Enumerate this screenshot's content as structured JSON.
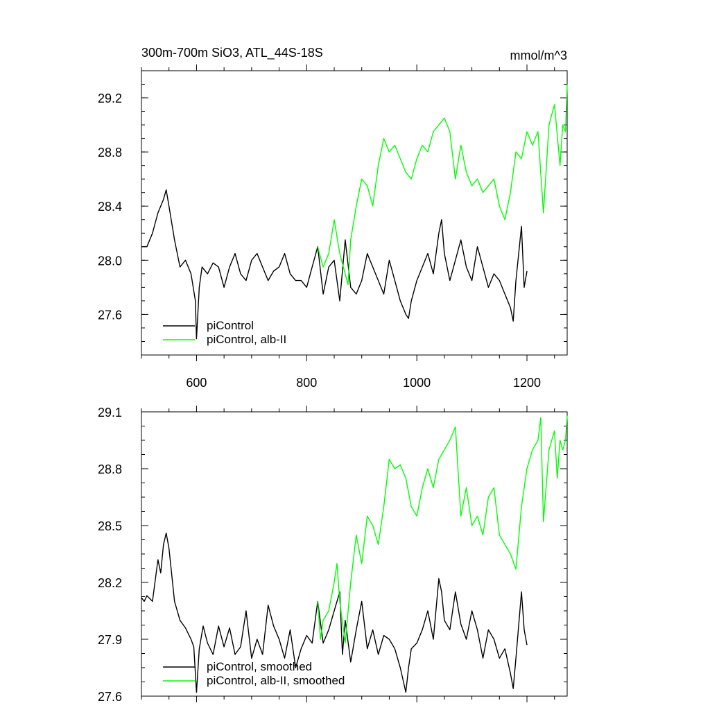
{
  "chart_data": [
    {
      "type": "line",
      "title_left": "300m-700m SiO3, ATL_44S-18S",
      "title_right": "mmol/m^3",
      "xlim": [
        500,
        1273
      ],
      "ylim": [
        27.3,
        29.4
      ],
      "x_ticks": [
        600,
        800,
        1000,
        1200
      ],
      "x_tick_labels": [
        "600",
        "800",
        "1000",
        "1200"
      ],
      "y_ticks": [
        27.6,
        28.0,
        28.4,
        28.8,
        29.2
      ],
      "y_tick_labels": [
        "27.6",
        "28.0",
        "28.4",
        "28.8",
        "29.2"
      ],
      "legend": [
        "piControl",
        "piControl, alb-II"
      ],
      "legend_position": "bottom-left",
      "series": [
        {
          "name": "piControl",
          "color": "#000000",
          "x": [
            500,
            510,
            520,
            530,
            540,
            545,
            550,
            560,
            570,
            580,
            590,
            598,
            600,
            605,
            610,
            620,
            630,
            640,
            650,
            660,
            670,
            680,
            690,
            700,
            710,
            720,
            730,
            740,
            750,
            760,
            770,
            780,
            790,
            800,
            810,
            820,
            830,
            840,
            850,
            860,
            870,
            880,
            890,
            900,
            910,
            920,
            930,
            940,
            950,
            960,
            970,
            980,
            985,
            990,
            1000,
            1010,
            1020,
            1030,
            1040,
            1045,
            1050,
            1060,
            1070,
            1080,
            1090,
            1100,
            1110,
            1120,
            1130,
            1140,
            1150,
            1160,
            1170,
            1175,
            1180,
            1190,
            1195,
            1200
          ],
          "values": [
            28.1,
            28.1,
            28.2,
            28.35,
            28.45,
            28.52,
            28.4,
            28.15,
            27.95,
            28.0,
            27.9,
            27.7,
            27.42,
            27.8,
            27.95,
            27.9,
            27.98,
            27.95,
            27.8,
            27.95,
            28.05,
            27.9,
            27.85,
            28.0,
            28.05,
            27.95,
            27.85,
            27.92,
            27.95,
            28.05,
            27.9,
            27.85,
            27.85,
            27.8,
            27.95,
            28.1,
            27.75,
            27.95,
            28.0,
            27.7,
            28.15,
            27.8,
            27.75,
            27.85,
            28.05,
            27.95,
            27.85,
            27.75,
            28.0,
            27.85,
            27.7,
            27.6,
            27.57,
            27.7,
            27.85,
            27.95,
            28.05,
            27.9,
            28.2,
            28.3,
            28.05,
            27.85,
            28.0,
            28.15,
            27.95,
            27.85,
            28.1,
            27.95,
            27.8,
            27.9,
            27.85,
            27.75,
            27.65,
            27.55,
            27.85,
            28.25,
            27.8,
            27.92
          ]
        },
        {
          "name": "piControl, alb-II",
          "color": "#00ff00",
          "x": [
            820,
            830,
            840,
            850,
            860,
            870,
            875,
            880,
            890,
            900,
            910,
            920,
            930,
            940,
            950,
            960,
            970,
            980,
            990,
            1000,
            1010,
            1020,
            1030,
            1040,
            1050,
            1060,
            1070,
            1080,
            1090,
            1100,
            1110,
            1120,
            1130,
            1140,
            1150,
            1160,
            1170,
            1180,
            1190,
            1200,
            1210,
            1220,
            1230,
            1240,
            1250,
            1260,
            1265,
            1270,
            1273
          ],
          "values": [
            28.1,
            27.95,
            28.05,
            28.3,
            28.05,
            27.9,
            27.82,
            28.15,
            28.4,
            28.6,
            28.55,
            28.4,
            28.7,
            28.9,
            28.8,
            28.85,
            28.75,
            28.65,
            28.6,
            28.75,
            28.85,
            28.8,
            28.95,
            29.0,
            29.05,
            28.95,
            28.6,
            28.85,
            28.65,
            28.55,
            28.6,
            28.5,
            28.55,
            28.6,
            28.4,
            28.3,
            28.5,
            28.8,
            28.75,
            28.95,
            28.85,
            28.95,
            28.35,
            29.0,
            29.15,
            28.7,
            29.0,
            28.95,
            29.3
          ]
        }
      ]
    },
    {
      "type": "line",
      "xlim": [
        500,
        1273
      ],
      "ylim": [
        27.6,
        29.1
      ],
      "x_ticks": [
        600,
        800,
        1000,
        1200
      ],
      "y_ticks": [
        27.6,
        27.9,
        28.2,
        28.5,
        28.8,
        29.1
      ],
      "y_tick_labels": [
        "27.6",
        "27.9",
        "28.2",
        "28.5",
        "28.8",
        "29.1"
      ],
      "legend": [
        "piControl, smoothed",
        "piControl, alb-II, smoothed"
      ],
      "legend_position": "bottom-left",
      "series": [
        {
          "name": "piControl, smoothed",
          "color": "#000000",
          "x": [
            500,
            505,
            510,
            520,
            530,
            535,
            540,
            545,
            550,
            560,
            570,
            580,
            590,
            595,
            600,
            605,
            612,
            620,
            630,
            640,
            650,
            660,
            670,
            680,
            690,
            700,
            710,
            720,
            730,
            740,
            750,
            760,
            770,
            780,
            790,
            800,
            810,
            820,
            830,
            840,
            850,
            860,
            865,
            870,
            880,
            890,
            900,
            910,
            920,
            930,
            940,
            950,
            960,
            970,
            980,
            985,
            990,
            1000,
            1010,
            1020,
            1030,
            1040,
            1045,
            1050,
            1060,
            1070,
            1080,
            1090,
            1100,
            1110,
            1120,
            1130,
            1140,
            1150,
            1160,
            1170,
            1175,
            1180,
            1190,
            1195,
            1200
          ],
          "values": [
            28.12,
            28.1,
            28.13,
            28.1,
            28.32,
            28.25,
            28.4,
            28.46,
            28.38,
            28.1,
            28.0,
            27.96,
            27.9,
            27.86,
            27.62,
            27.85,
            27.97,
            27.88,
            27.82,
            27.97,
            27.86,
            27.96,
            27.82,
            27.86,
            28.05,
            27.8,
            27.9,
            27.82,
            28.08,
            27.97,
            27.9,
            27.8,
            27.95,
            27.75,
            27.85,
            27.92,
            27.88,
            28.1,
            27.88,
            27.95,
            28.05,
            28.15,
            27.82,
            28.0,
            27.78,
            27.95,
            28.1,
            27.85,
            27.95,
            27.82,
            27.92,
            27.9,
            27.85,
            27.75,
            27.62,
            27.75,
            27.85,
            27.88,
            27.95,
            28.05,
            27.9,
            28.22,
            28.15,
            28.0,
            27.95,
            28.15,
            27.98,
            27.9,
            28.05,
            27.95,
            27.8,
            27.95,
            27.9,
            27.8,
            27.85,
            27.72,
            27.64,
            27.8,
            28.15,
            27.95,
            27.87
          ]
        },
        {
          "name": "piControl, alb-II, smoothed",
          "color": "#00ff00",
          "x": [
            820,
            825,
            830,
            840,
            850,
            855,
            860,
            870,
            880,
            890,
            900,
            910,
            920,
            930,
            940,
            950,
            960,
            970,
            980,
            990,
            1000,
            1010,
            1020,
            1030,
            1040,
            1050,
            1060,
            1070,
            1080,
            1090,
            1100,
            1110,
            1120,
            1130,
            1140,
            1150,
            1160,
            1170,
            1180,
            1190,
            1200,
            1210,
            1220,
            1225,
            1230,
            1240,
            1250,
            1255,
            1260,
            1265,
            1270,
            1273
          ],
          "values": [
            28.1,
            27.9,
            28.0,
            28.05,
            28.2,
            28.3,
            28.1,
            27.88,
            28.2,
            28.45,
            28.3,
            28.55,
            28.5,
            28.4,
            28.6,
            28.85,
            28.8,
            28.82,
            28.75,
            28.6,
            28.55,
            28.7,
            28.8,
            28.7,
            28.85,
            28.9,
            28.95,
            29.02,
            28.55,
            28.7,
            28.5,
            28.55,
            28.45,
            28.65,
            28.7,
            28.45,
            28.4,
            28.35,
            28.27,
            28.6,
            28.8,
            28.9,
            28.95,
            29.07,
            28.52,
            28.9,
            29.0,
            28.75,
            28.95,
            28.9,
            28.95,
            29.08
          ]
        }
      ]
    }
  ]
}
